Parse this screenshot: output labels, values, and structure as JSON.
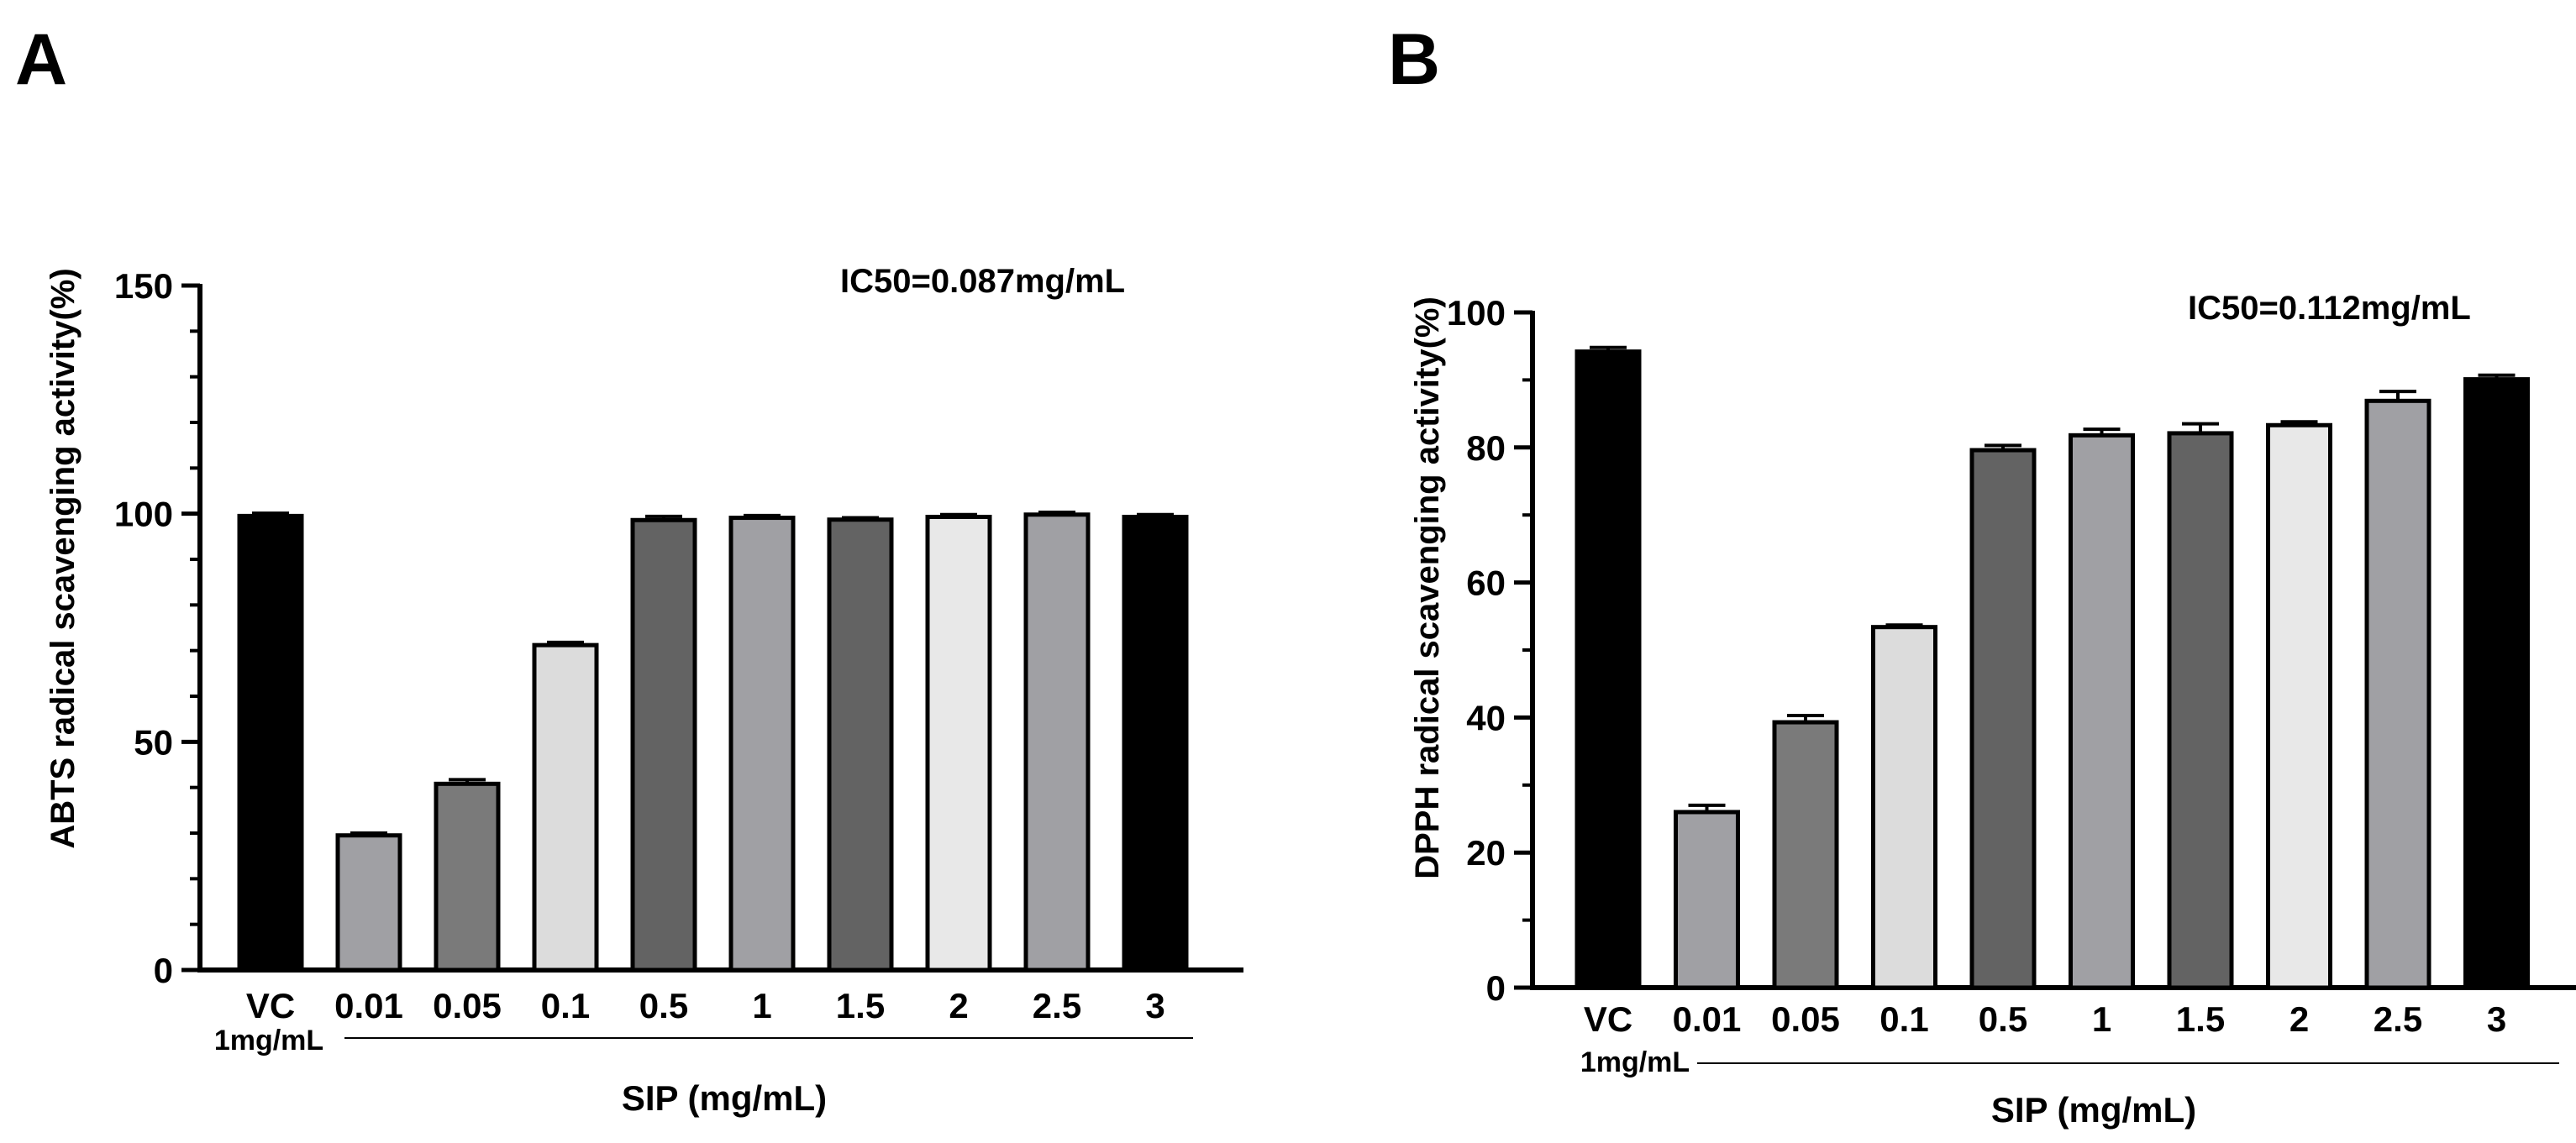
{
  "chart_data": [
    {
      "panel": "A",
      "type": "bar",
      "categories": [
        "VC",
        "0.01",
        "0.05",
        "0.1",
        "0.5",
        "1",
        "1.5",
        "2",
        "2.5",
        "3"
      ],
      "vc_sublabel": "1mg/mL",
      "values": [
        99.5,
        29.5,
        40.8,
        71.2,
        98.6,
        99.1,
        98.7,
        99.3,
        99.8,
        99.3
      ],
      "errors": [
        0.6,
        0.5,
        0.9,
        0.6,
        0.8,
        0.5,
        0.4,
        0.5,
        0.5,
        0.5
      ],
      "colors": [
        "#000000",
        "#a0a0a4",
        "#7a7a7a",
        "#dcdcdc",
        "#636363",
        "#a0a0a4",
        "#636363",
        "#e8e8e8",
        "#a0a0a4",
        "#000000"
      ],
      "ylabel": "ABTS radical scavenging activity(%)",
      "xlabel": "SIP (mg/mL)",
      "ylim": [
        0,
        150
      ],
      "yticks": [
        0,
        50,
        100,
        150
      ],
      "annotation": "IC50=0.087mg/mL"
    },
    {
      "panel": "B",
      "type": "bar",
      "categories": [
        "VC",
        "0.01",
        "0.05",
        "0.1",
        "0.5",
        "1",
        "1.5",
        "2",
        "2.5",
        "3"
      ],
      "vc_sublabel": "1mg/mL",
      "values": [
        94.2,
        26.0,
        39.3,
        53.4,
        79.6,
        81.8,
        82.1,
        83.3,
        86.9,
        90.1
      ],
      "errors": [
        0.6,
        1.0,
        1.0,
        0.3,
        0.7,
        0.9,
        1.4,
        0.5,
        1.4,
        0.6
      ],
      "colors": [
        "#000000",
        "#a0a0a4",
        "#7a7a7a",
        "#dcdcdc",
        "#636363",
        "#a0a0a4",
        "#636363",
        "#e8e8e8",
        "#a0a0a4",
        "#000000"
      ],
      "ylabel": "DPPH radical scavenging activity(%)",
      "xlabel": "SIP (mg/mL)",
      "ylim": [
        0,
        100
      ],
      "yticks": [
        0,
        20,
        40,
        60,
        80,
        100
      ],
      "annotation": "IC50=0.112mg/mL"
    }
  ]
}
